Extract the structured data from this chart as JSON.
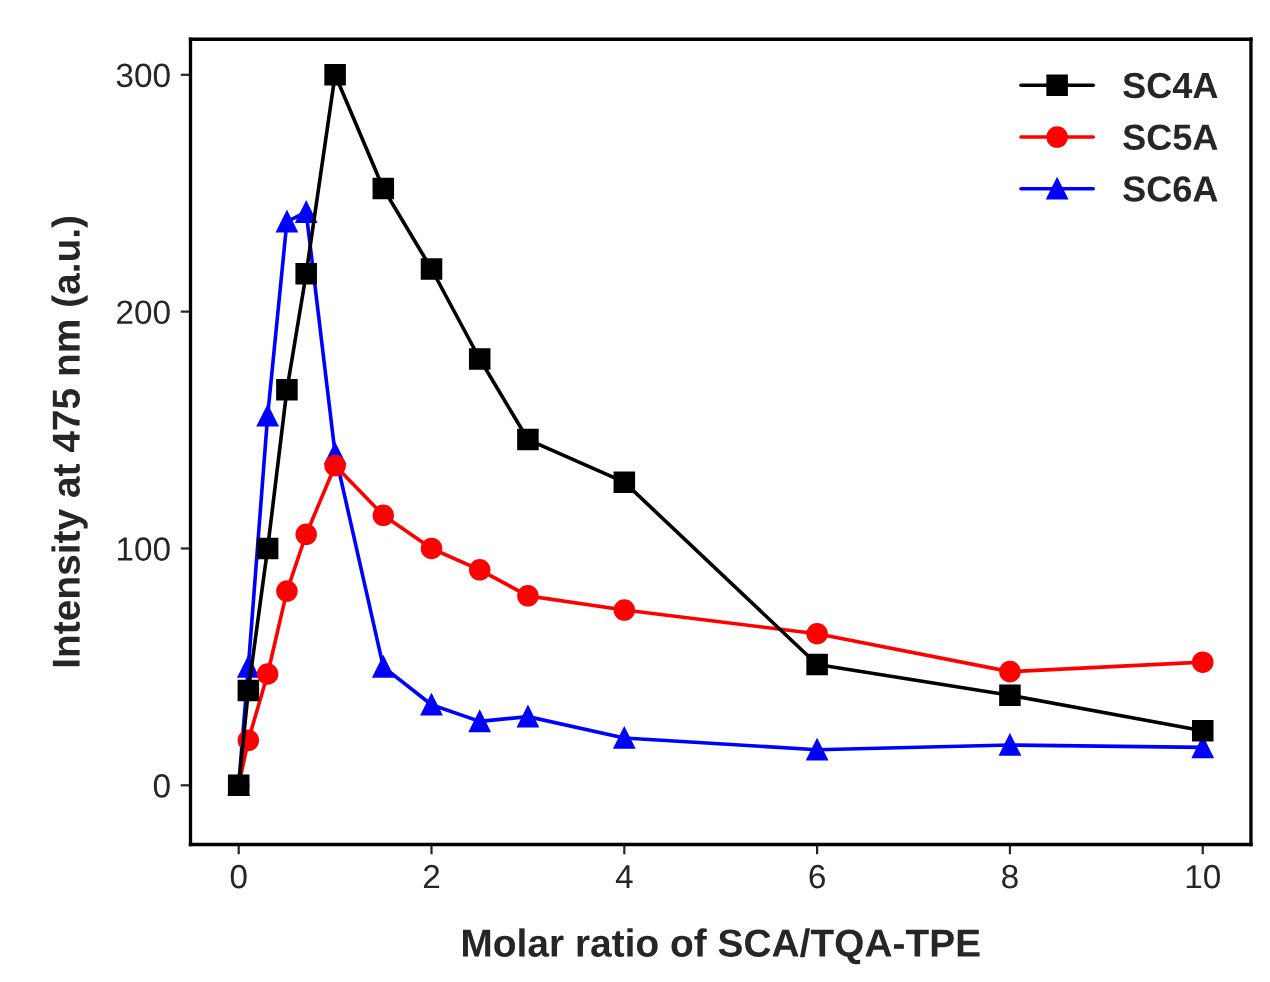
{
  "chart_data": {
    "type": "line",
    "xlabel": "Molar ratio of SCA/TQA-TPE",
    "ylabel": "Intensity at 475 nm (a.u.)",
    "x": [
      0,
      0.1,
      0.3,
      0.5,
      0.7,
      1,
      1.5,
      2,
      2.5,
      3,
      4,
      6,
      8,
      10
    ],
    "series": [
      {
        "name": "SC4A",
        "color": "#000000",
        "marker": "square",
        "values": [
          0,
          40,
          100,
          167,
          216,
          300,
          252,
          218,
          180,
          146,
          128,
          51,
          38,
          23
        ]
      },
      {
        "name": "SC5A",
        "color": "#ff0000",
        "marker": "circle",
        "values": [
          0,
          19,
          47,
          82,
          106,
          135,
          114,
          100,
          91,
          80,
          74,
          64,
          48,
          52
        ]
      },
      {
        "name": "SC6A",
        "color": "#0000ff",
        "marker": "triangle",
        "values": [
          0,
          50,
          156,
          238,
          242,
          140,
          50,
          34,
          27,
          29,
          20,
          15,
          17,
          16
        ]
      }
    ],
    "xlim": [
      -0.5,
      10.5
    ],
    "xticks": [
      0,
      2,
      4,
      6,
      8,
      10
    ],
    "ylim": [
      -25,
      315
    ],
    "yticks": [
      0,
      100,
      200,
      300
    ],
    "grid": false,
    "legend": "top right",
    "line_style": "solid"
  }
}
